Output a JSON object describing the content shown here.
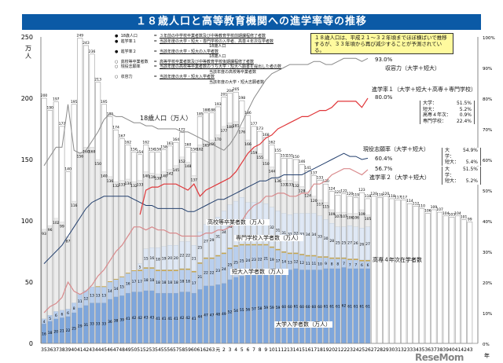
{
  "title": "１８歳人口と高等教育機関への進学率等の推移",
  "note": "１８歳人口は、平成２１～３２年頃までほぼ横ばいで推移するが、３３年頃から再び減少することが予測されている。",
  "legend": [
    {
      "mark": "●",
      "name": "18歳人口",
      "eq": "=",
      "num": "３年前の中学校卒業者数及び中等教育学校前期課程修了者数",
      "den": ""
    },
    {
      "mark": "●",
      "name": "進学率１",
      "eq": "=",
      "num": "当該年度の大学・短大・専門学校の入学者、高専４年次在学者数",
      "den": "18歳人口"
    },
    {
      "mark": "●",
      "name": "進学率２",
      "eq": "=",
      "num": "当該年度の大学・短大の入学者数",
      "den": "18歳人口"
    },
    {
      "mark": "○",
      "name": "高校等卒業者数",
      "eq": "=",
      "num": "高等学校卒業者数及び中等教育学校後期課程修了者数",
      "den": ""
    },
    {
      "mark": "○",
      "name": "現役志願率",
      "eq": "=",
      "num": "当該年度の高校等卒業者数のうち大学・短大へ願書を提出した者の数",
      "den": "当該年度の高校等卒業者数"
    },
    {
      "mark": "○",
      "name": "収容力",
      "eq": "=",
      "num": "当該年度の大学・短大入学者数",
      "den": "当該年度の大学・短大志願者数"
    }
  ],
  "annotations": {
    "pop": "18歳人口（万人）",
    "hs": "高校等卒業者数（万人）",
    "voc": "専門学校入学者数（万人）",
    "jc": "短大入学者数（万人）",
    "univ": "大学入学者数（万人）",
    "kosen": "高専４年次在学者数",
    "cap": "収容力（大学＋短大）",
    "cap_val": "93.0%",
    "r1": "進学率１（大学＋短大＋高専＋専門学校）",
    "r1_val": "80.0%",
    "app": "現役志願率（大学＋短大）",
    "app_val": "60.4%",
    "r2_val": "56.7%",
    "r2": "進学率２（大学＋短大）"
  },
  "breakdowns": {
    "r1": [
      [
        "大学：",
        "51.5%"
      ],
      [
        "短大：",
        "5.2%"
      ],
      [
        "高専４年次：",
        "0.9%"
      ],
      [
        "専門学校：",
        "22.4%"
      ]
    ],
    "app": [
      [
        "大学：",
        "54.9%"
      ],
      [
        "短大：",
        "5.4%"
      ]
    ],
    "r2": [
      [
        "大学：",
        "51.5%"
      ],
      [
        "短大：",
        "5.2%"
      ]
    ]
  },
  "watermark": "ReseMom",
  "chart_data": {
    "type": "bar",
    "title": "１８歳人口と高等教育機関への進学率等の推移",
    "ylabel": "万人",
    "ylim": [
      0,
      250
    ],
    "yticks": [
      0,
      50,
      100,
      150,
      200,
      250
    ],
    "y2lim": [
      0,
      100
    ],
    "y2ticks": [
      "0%",
      "10%",
      "20%",
      "30%",
      "40%",
      "50%",
      "60%",
      "70%",
      "80%",
      "90%",
      "100%"
    ],
    "xlabel": "年",
    "categories": [
      "35",
      "36",
      "37",
      "38",
      "39",
      "40",
      "41",
      "42",
      "43",
      "44",
      "45",
      "46",
      "47",
      "48",
      "49",
      "50",
      "51",
      "52",
      "53",
      "54",
      "55",
      "56",
      "57",
      "58",
      "59",
      "60",
      "61",
      "62",
      "63",
      "元",
      "2",
      "3",
      "4",
      "5",
      "6",
      "7",
      "8",
      "9",
      "10",
      "11",
      "12",
      "13",
      "14",
      "15",
      "16",
      "17",
      "18",
      "19",
      "20",
      "21",
      "22",
      "23",
      "24",
      "25",
      "26",
      "27",
      "28",
      "29",
      "30",
      "31",
      "32",
      "33",
      "34",
      "35",
      "36",
      "37",
      "38",
      "39",
      "40",
      "41",
      "42",
      "43"
    ],
    "population": [
      200,
      190,
      197,
      177,
      140,
      195,
      249,
      243,
      236,
      213,
      195,
      185,
      174,
      167,
      162,
      156,
      154,
      162,
      156,
      156,
      158,
      161,
      164,
      172,
      160,
      156,
      185,
      188,
      188,
      193,
      201,
      204,
      205,
      198,
      186,
      177,
      173,
      168,
      162,
      155,
      151,
      151,
      150,
      146,
      141,
      137,
      133,
      130,
      124,
      121,
      122,
      120,
      119,
      123,
      118,
      120,
      119,
      120,
      118,
      117,
      117,
      114,
      112,
      110,
      106,
      109,
      107,
      104,
      103,
      104,
      101,
      99
    ],
    "hs_graduates": [
      93,
      96,
      102,
      99,
      87,
      116,
      156,
      160,
      160,
      150,
      140,
      136,
      132,
      133,
      134,
      132,
      133,
      140,
      139,
      138,
      140,
      142,
      145,
      152,
      148,
      137,
      162,
      165,
      166,
      170,
      177,
      180,
      181,
      176,
      166,
      159,
      155,
      150,
      144,
      136,
      133,
      133,
      132,
      128,
      124,
      120,
      117,
      115,
      109,
      107,
      107,
      106,
      106,
      109,
      105
    ],
    "university": [
      16,
      18,
      20,
      21,
      22,
      25,
      29,
      31,
      33,
      33,
      33,
      36,
      38,
      39,
      41,
      42,
      42,
      43,
      43,
      41,
      41,
      41,
      41,
      42,
      42,
      41,
      44,
      47,
      47,
      48,
      49,
      52,
      54,
      55,
      56,
      57,
      58,
      59,
      59,
      59,
      60,
      60,
      61,
      60,
      60,
      60,
      60,
      61,
      61,
      61,
      62,
      61,
      61,
      61,
      61
    ],
    "junior_college": [
      4,
      5,
      6,
      6,
      6,
      8,
      11,
      12,
      13,
      13,
      13,
      14,
      14,
      15,
      16,
      17,
      17,
      18,
      18,
      18,
      18,
      18,
      18,
      18,
      18,
      17,
      21,
      22,
      22,
      23,
      24,
      25,
      25,
      25,
      24,
      23,
      22,
      21,
      19,
      17,
      14,
      13,
      12,
      12,
      11,
      11,
      10,
      9,
      8,
      8,
      7,
      7,
      7,
      6,
      6
    ],
    "vocational": [
      0,
      0,
      0,
      0,
      0,
      0,
      0,
      0,
      0,
      0,
      0,
      0,
      0,
      0,
      0,
      0,
      5,
      15,
      16,
      18,
      19,
      20,
      20,
      22,
      22,
      21,
      25,
      27,
      29,
      31,
      34,
      35,
      36,
      38,
      34,
      34,
      34,
      33,
      32,
      31,
      31,
      31,
      32,
      33,
      34,
      34,
      33,
      30,
      28,
      25,
      25,
      27,
      26,
      26,
      27
    ],
    "capacity_pct": [
      58,
      61,
      64,
      64,
      78,
      63,
      62,
      63,
      66,
      69,
      73,
      75,
      74,
      74,
      73,
      72,
      72,
      71,
      71,
      70,
      70,
      70,
      70,
      69,
      69,
      68,
      67,
      66,
      65,
      64,
      63,
      65,
      68,
      72,
      76,
      80,
      83,
      86,
      88,
      89,
      90,
      91,
      91,
      91,
      91,
      92,
      92,
      91,
      91,
      92,
      93,
      93,
      93,
      92,
      93
    ],
    "application_pct": [
      26,
      28,
      30,
      32,
      35,
      38,
      41,
      44,
      46,
      47,
      48,
      48,
      48,
      48,
      48,
      47,
      46,
      45,
      45,
      44,
      44,
      44,
      44,
      44,
      43,
      43,
      44,
      45,
      46,
      47,
      47,
      48,
      49,
      50,
      51,
      52,
      53,
      53,
      54,
      54,
      55,
      55,
      55,
      55,
      56,
      57,
      58,
      59,
      60,
      61,
      62,
      61,
      61,
      60,
      60.4
    ],
    "rate2_pct": [
      10,
      12,
      13,
      15,
      20,
      17,
      16,
      17,
      19,
      22,
      24,
      27,
      30,
      32,
      35,
      38,
      38,
      37,
      38,
      37,
      37,
      36,
      36,
      35,
      35,
      35,
      35,
      36,
      36,
      37,
      37,
      38,
      39,
      40,
      43,
      45,
      46,
      48,
      48,
      49,
      49,
      48,
      48,
      49,
      49,
      52,
      52,
      53,
      55,
      56,
      57,
      57,
      56,
      55,
      56.7
    ],
    "rate1_pct": [
      null,
      null,
      null,
      null,
      null,
      null,
      null,
      null,
      null,
      null,
      null,
      null,
      null,
      null,
      null,
      null,
      42,
      50,
      51,
      51,
      52,
      52,
      52,
      51,
      50,
      52,
      48,
      50,
      51,
      52,
      53,
      54,
      56,
      59,
      62,
      64,
      65,
      67,
      68,
      70,
      71,
      72,
      73,
      74,
      74,
      75,
      76,
      76,
      77,
      79,
      79,
      79,
      79,
      77,
      80
    ],
    "colors": {
      "university": "#7ea6dc",
      "junior_college": "#b9cfee",
      "kosen": "#c9a64a",
      "vocational": "#dfe8f5",
      "hs": "#ececec",
      "capacity": "#8a8a8a",
      "application": "#24406e",
      "rate1": "#e0373a",
      "rate2": "#d98a8c"
    }
  }
}
